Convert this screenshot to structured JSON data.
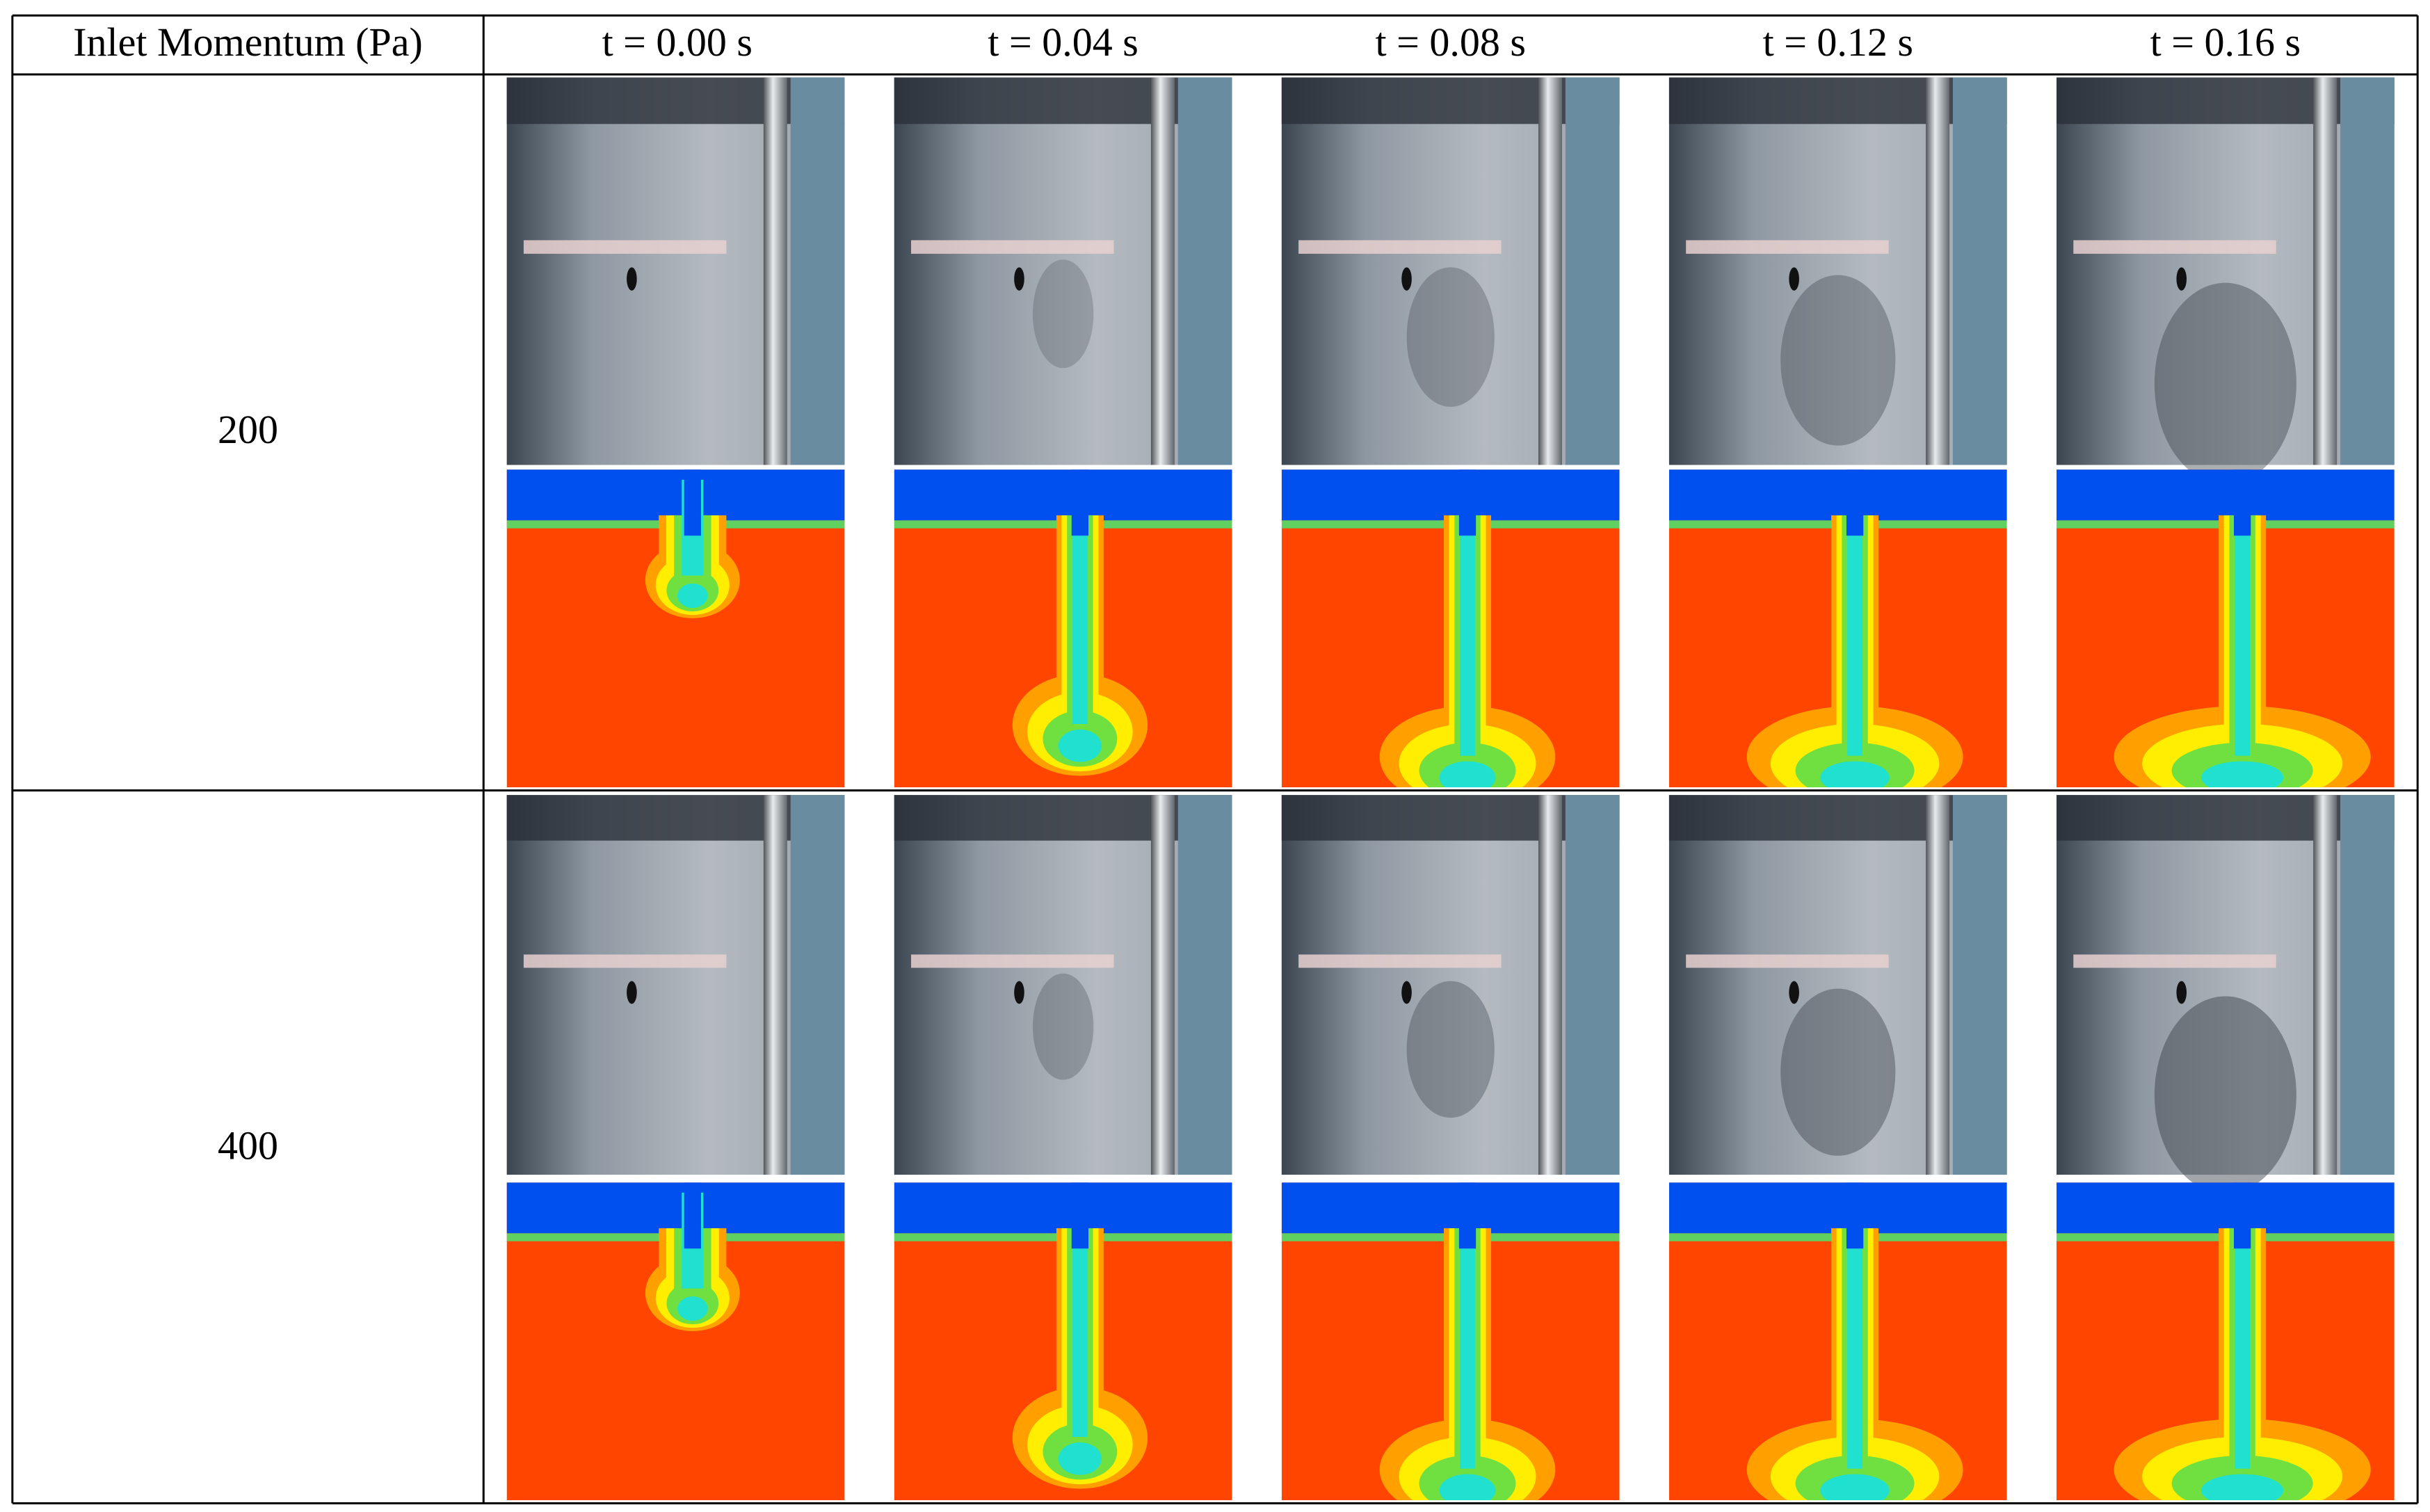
{
  "table": {
    "header": [
      "Inlet Momentum (Pa)",
      "t = 0.00 s",
      "t = 0.04 s",
      "t = 0.08 s",
      "t = 0.12 s",
      "t = 0.16 s"
    ],
    "rows": [
      [
        "200"
      ],
      [
        "400"
      ]
    ]
  }
}
